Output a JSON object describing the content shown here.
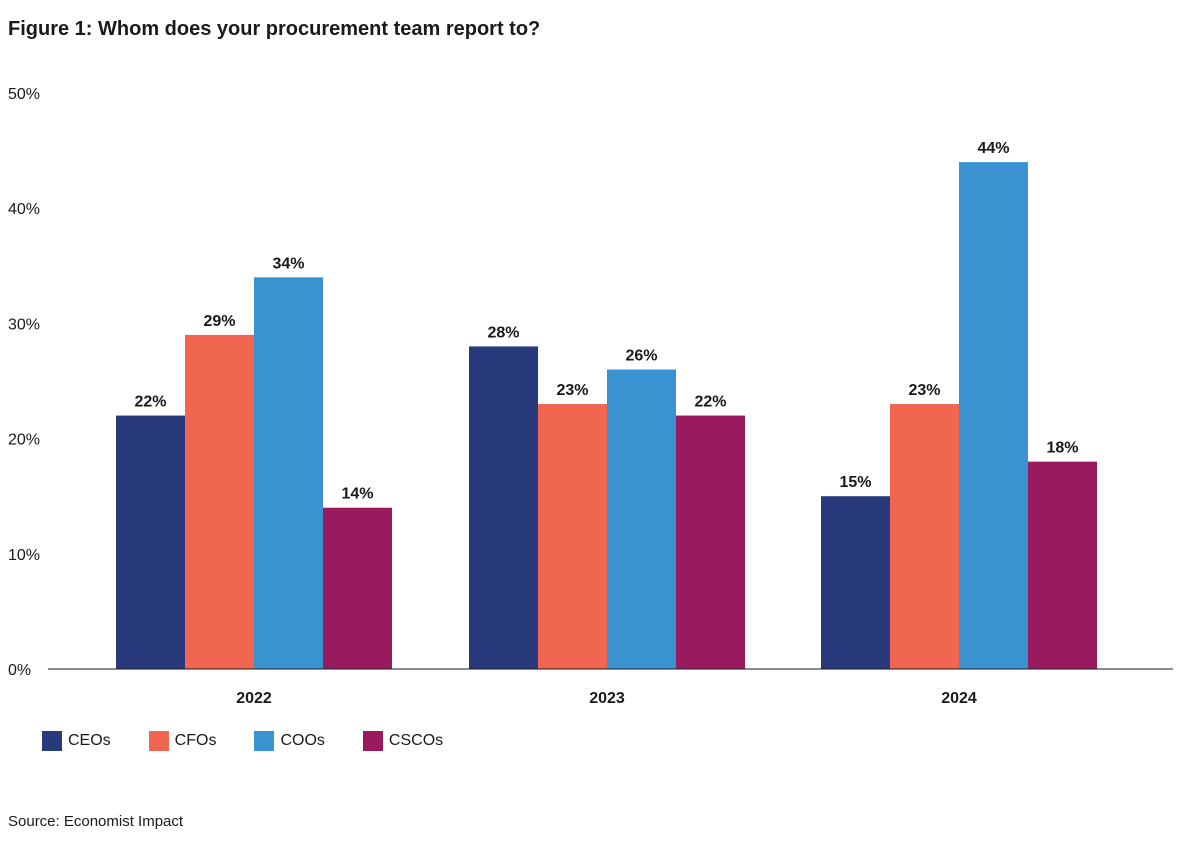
{
  "title": "Figure 1: Whom does your procurement team report to?",
  "source": "Source: Economist Impact",
  "chart_data": {
    "type": "bar",
    "categories": [
      "2022",
      "2023",
      "2024"
    ],
    "series": [
      {
        "name": "CEOs",
        "color": "#283a7c",
        "values": [
          22,
          28,
          15
        ],
        "labels": [
          "22%",
          "28%",
          "15%"
        ]
      },
      {
        "name": "CFOs",
        "color": "#f06650",
        "values": [
          29,
          23,
          23
        ],
        "labels": [
          "29%",
          "23%",
          "23%"
        ]
      },
      {
        "name": "COOs",
        "color": "#3a93d0",
        "values": [
          34,
          26,
          44
        ],
        "labels": [
          "34%",
          "26%",
          "44%"
        ]
      },
      {
        "name": "CSCOs",
        "color": "#9a1a5e",
        "values": [
          14,
          22,
          18
        ],
        "labels": [
          "14%",
          "22%",
          "18%"
        ]
      }
    ],
    "ylim": [
      0,
      50
    ],
    "yticks": [
      "0%",
      "10%",
      "20%",
      "30%",
      "40%",
      "50%"
    ],
    "grid": false,
    "legend": "bottom-left"
  }
}
